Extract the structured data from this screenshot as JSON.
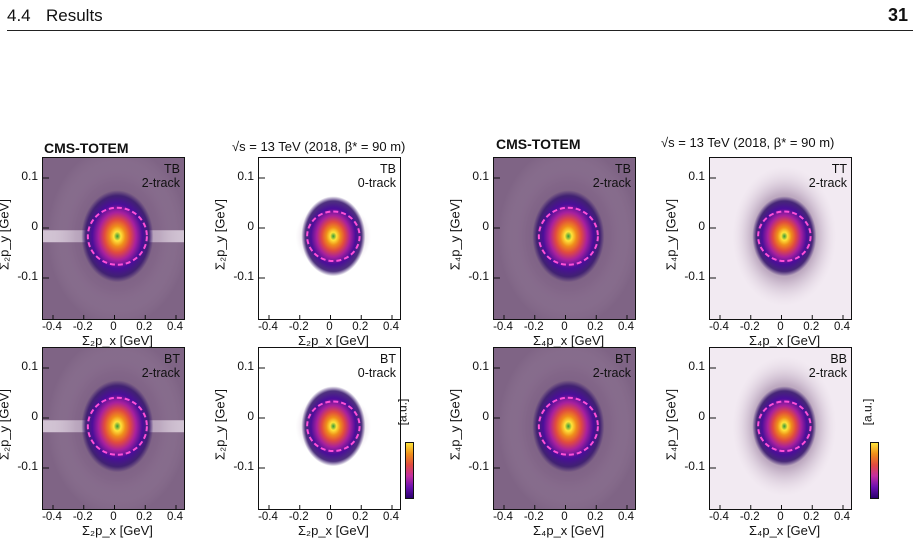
{
  "header": {
    "section_number": "4.4",
    "section_title": "Results",
    "page_number": "31"
  },
  "figure": {
    "experiment": "CMS-TOTEM",
    "run_info": "√s = 13 TeV (2018, β* = 90 m)",
    "colorbar_label": "[a.u.]",
    "y_ticks": [
      "0.1",
      "0",
      "-0.1"
    ],
    "x_ticks": [
      "-0.4",
      "-0.2",
      "0",
      "0.2",
      "0.4"
    ],
    "axis_titles": {
      "sigma2_y": "Σ₂p_y [GeV]",
      "sigma2_x": "Σ₂p_x [GeV]",
      "sigma4_y": "Σ₄p_y [GeV]",
      "sigma4_x": "Σ₄p_x [GeV]"
    },
    "panels": [
      {
        "topology": "TB",
        "tracks": "2-track"
      },
      {
        "topology": "TB",
        "tracks": "0-track"
      },
      {
        "topology": "TB",
        "tracks": "2-track"
      },
      {
        "topology": "TT",
        "tracks": "2-track"
      },
      {
        "topology": "BT",
        "tracks": "2-track"
      },
      {
        "topology": "BT",
        "tracks": "0-track"
      },
      {
        "topology": "BT",
        "tracks": "2-track"
      },
      {
        "topology": "BB",
        "tracks": "2-track"
      }
    ]
  },
  "colors": {
    "ellipse": "#ff4fd8",
    "core": "#ffe43a",
    "mid": "#e04a40",
    "outer": "#3a0a8a",
    "background": "#7a5a80",
    "light_background": "#d8c8d8"
  }
}
